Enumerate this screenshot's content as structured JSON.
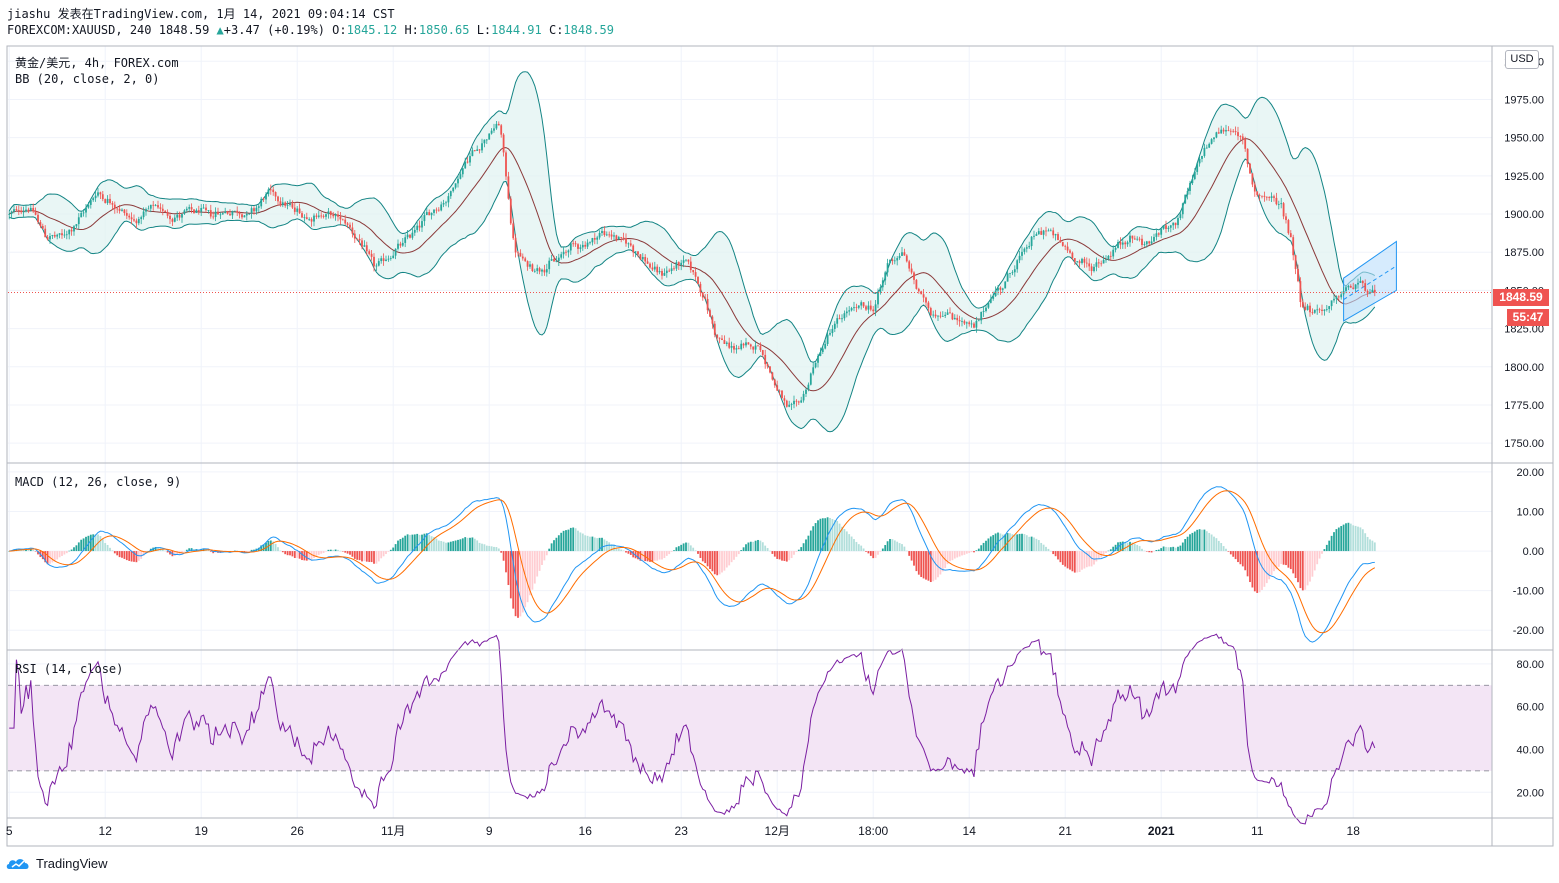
{
  "header": {
    "line1": "jiashu 发表在TradingView.com, 1月 14, 2021 09:04:14 CST",
    "symbol": "FOREXCOM:XAUUSD, 240",
    "last": "1848.59",
    "change_arrow": "▲",
    "change": "+3.47 (+0.19%)",
    "o_label": "O:",
    "o": "1845.12",
    "h_label": "H:",
    "h": "1850.65",
    "l_label": "L:",
    "l": "1844.91",
    "c_label": "C:",
    "c": "1848.59"
  },
  "pane_labels": {
    "main": "黄金/美元, 4h, FOREX.com",
    "bb": "BB (20, close, 2, 0)",
    "macd": "MACD (12, 26, close, 9)",
    "rsi": "RSI (14, close)"
  },
  "currency": "USD",
  "price_tag": {
    "price": "1848.59",
    "countdown": "55:47"
  },
  "footer": {
    "brand": "TradingView"
  },
  "colors": {
    "up": "#26a69a",
    "down": "#ef5350",
    "bb_fill": "#e0f2f1",
    "bb_band": "#138484",
    "bb_basis": "#8b3a3a",
    "macd": "#2196f3",
    "signal": "#ff6d00",
    "rsi": "#7b1fa2",
    "rsi_band": "#f3e5f5",
    "last_price": "#ef5350",
    "channel": "#bbdefb"
  },
  "chart_data": [
    {
      "type": "candlestick",
      "title": "黄金/美元, 4h, FOREX.com",
      "ylim": [
        1737,
        2010
      ],
      "y_ticks": [
        "2000.00",
        "1975.00",
        "1950.00",
        "1925.00",
        "1900.00",
        "1875.00",
        "1850.00",
        "1825.00",
        "1800.00",
        "1775.00",
        "1750.00"
      ],
      "y_tick_values": [
        2000,
        1975,
        1950,
        1925,
        1900,
        1875,
        1850,
        1825,
        1800,
        1775,
        1750
      ],
      "x_ticks": [
        "5",
        "12",
        "19",
        "26",
        "11月",
        "9",
        "16",
        "23",
        "12月",
        "18:00",
        "14",
        "21",
        "2021",
        "11",
        "18"
      ],
      "x_tick_index": [
        0,
        40,
        80,
        120,
        160,
        200,
        240,
        280,
        320,
        360,
        400,
        440,
        480,
        520,
        560
      ],
      "x_tick_bold": [
        false,
        false,
        false,
        false,
        false,
        false,
        false,
        false,
        false,
        false,
        false,
        false,
        true,
        false,
        false
      ],
      "anchors": [
        [
          0,
          1900
        ],
        [
          8,
          1905
        ],
        [
          15,
          1885
        ],
        [
          22,
          1885
        ],
        [
          28,
          1895
        ],
        [
          36,
          1915
        ],
        [
          44,
          1905
        ],
        [
          52,
          1895
        ],
        [
          60,
          1905
        ],
        [
          68,
          1898
        ],
        [
          76,
          1902
        ],
        [
          84,
          1900
        ],
        [
          92,
          1902
        ],
        [
          100,
          1900
        ],
        [
          108,
          1915
        ],
        [
          116,
          1905
        ],
        [
          124,
          1898
        ],
        [
          132,
          1900
        ],
        [
          140,
          1895
        ],
        [
          146,
          1880
        ],
        [
          152,
          1865
        ],
        [
          158,
          1872
        ],
        [
          166,
          1885
        ],
        [
          174,
          1900
        ],
        [
          182,
          1910
        ],
        [
          190,
          1935
        ],
        [
          198,
          1950
        ],
        [
          204,
          1960
        ],
        [
          210,
          1875
        ],
        [
          216,
          1865
        ],
        [
          222,
          1865
        ],
        [
          228,
          1870
        ],
        [
          234,
          1880
        ],
        [
          240,
          1880
        ],
        [
          246,
          1888
        ],
        [
          252,
          1885
        ],
        [
          258,
          1880
        ],
        [
          264,
          1870
        ],
        [
          270,
          1860
        ],
        [
          276,
          1865
        ],
        [
          282,
          1870
        ],
        [
          288,
          1850
        ],
        [
          294,
          1820
        ],
        [
          300,
          1812
        ],
        [
          306,
          1813
        ],
        [
          312,
          1815
        ],
        [
          318,
          1790
        ],
        [
          324,
          1770
        ],
        [
          330,
          1780
        ],
        [
          336,
          1805
        ],
        [
          342,
          1825
        ],
        [
          348,
          1835
        ],
        [
          354,
          1840
        ],
        [
          360,
          1838
        ],
        [
          366,
          1870
        ],
        [
          372,
          1875
        ],
        [
          378,
          1850
        ],
        [
          384,
          1835
        ],
        [
          390,
          1835
        ],
        [
          396,
          1830
        ],
        [
          402,
          1825
        ],
        [
          408,
          1845
        ],
        [
          414,
          1855
        ],
        [
          420,
          1870
        ],
        [
          426,
          1885
        ],
        [
          432,
          1890
        ],
        [
          438,
          1880
        ],
        [
          444,
          1870
        ],
        [
          450,
          1865
        ],
        [
          456,
          1870
        ],
        [
          462,
          1880
        ],
        [
          468,
          1885
        ],
        [
          474,
          1880
        ],
        [
          480,
          1890
        ],
        [
          486,
          1895
        ],
        [
          492,
          1920
        ],
        [
          498,
          1945
        ],
        [
          504,
          1955
        ],
        [
          510,
          1955
        ],
        [
          514,
          1945
        ],
        [
          518,
          1915
        ],
        [
          524,
          1910
        ],
        [
          530,
          1905
        ],
        [
          534,
          1880
        ],
        [
          538,
          1840
        ],
        [
          544,
          1835
        ],
        [
          550,
          1840
        ],
        [
          556,
          1850
        ],
        [
          562,
          1855
        ],
        [
          568,
          1848.59
        ]
      ],
      "series_names": [
        "BB basis",
        "BB upper",
        "BB lower"
      ],
      "last_price": 1848.59,
      "channel": {
        "x": [
          556,
          578
        ],
        "lower": [
          1830,
          1850
        ],
        "upper": [
          1858,
          1882
        ]
      }
    },
    {
      "type": "histogram+line",
      "title": "MACD (12, 26, close, 9)",
      "ylim": [
        -25,
        22
      ],
      "y_ticks": [
        "20.00",
        "10.00",
        "0.00",
        "-10.00",
        "-20.00"
      ],
      "y_tick_values": [
        20,
        10,
        0,
        -10,
        -20
      ],
      "series_names": [
        "MACD",
        "Signal",
        "Histogram"
      ]
    },
    {
      "type": "line",
      "title": "RSI (14, close)",
      "ylim": [
        8,
        86
      ],
      "y_ticks": [
        "80.00",
        "60.00",
        "40.00",
        "20.00"
      ],
      "y_tick_values": [
        80,
        60,
        40,
        20
      ],
      "bands": [
        30,
        70
      ],
      "series_names": [
        "RSI"
      ]
    }
  ]
}
